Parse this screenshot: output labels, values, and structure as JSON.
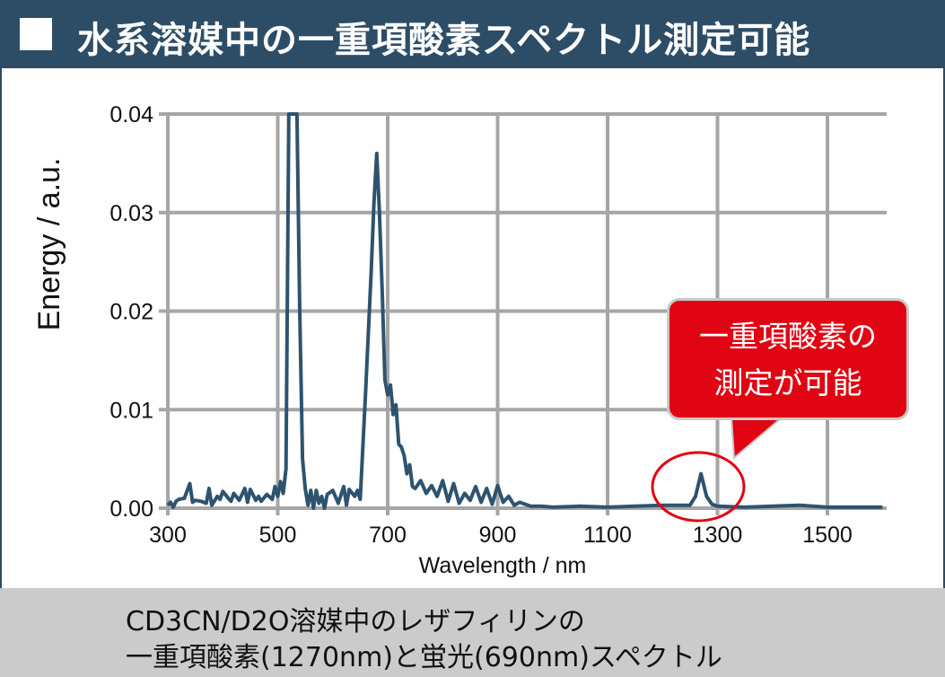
{
  "header": {
    "title": "水系溶媒中の一重項酸素スペクトル測定可能"
  },
  "callout": {
    "line1": "一重項酸素の",
    "line2": "測定が可能"
  },
  "caption": {
    "line1": "CD3CN/D2O溶媒中のレザフィリンの",
    "line2": "一重項酸素(1270nm)と蛍光(690nm)スペクトル"
  },
  "colors": {
    "header": "#2d4d66",
    "line": "#2e536e",
    "callout": "#e10514",
    "grid": "#a6a6a6",
    "caption_bg": "#cbcbcb"
  },
  "chart_data": {
    "type": "line",
    "title": "",
    "xlabel": "Wavelength / nm",
    "ylabel": "Energy / a.u.",
    "xlim": [
      300,
      1610
    ],
    "ylim": [
      0,
      0.04
    ],
    "xticks": [
      "300",
      "500",
      "700",
      "900",
      "1100",
      "1300",
      "1500"
    ],
    "yticks": [
      "0.00",
      "0.01",
      "0.02",
      "0.03",
      "0.04"
    ],
    "grid": true,
    "annotation": "circle around 1270 nm peak",
    "series": [
      {
        "name": "spectrum",
        "x": [
          300,
          305,
          310,
          315,
          320,
          330,
          340,
          345,
          350,
          360,
          370,
          375,
          380,
          390,
          395,
          400,
          410,
          415,
          420,
          430,
          440,
          445,
          450,
          460,
          465,
          470,
          480,
          490,
          495,
          500,
          505,
          510,
          515,
          520,
          525,
          530,
          535,
          540,
          545,
          550,
          555,
          560,
          565,
          570,
          575,
          580,
          585,
          590,
          600,
          610,
          620,
          625,
          630,
          640,
          645,
          650,
          660,
          670,
          675,
          680,
          685,
          690,
          695,
          700,
          705,
          710,
          715,
          720,
          725,
          730,
          735,
          740,
          745,
          750,
          760,
          770,
          780,
          790,
          800,
          810,
          820,
          830,
          840,
          850,
          860,
          870,
          880,
          890,
          900,
          910,
          920,
          930,
          940,
          960,
          980,
          1000,
          1050,
          1100,
          1150,
          1200,
          1230,
          1250,
          1260,
          1270,
          1280,
          1290,
          1300,
          1350,
          1400,
          1450,
          1500,
          1550,
          1600
        ],
        "y": [
          0.0003,
          0.0006,
          0.0001,
          0.0007,
          0.0009,
          0.001,
          0.0025,
          0.0006,
          0.0008,
          0.0007,
          0.0005,
          0.002,
          0.0003,
          0.0012,
          0.0009,
          0.0017,
          0.001,
          0.0007,
          0.0015,
          0.0008,
          0.002,
          0.0006,
          0.0019,
          0.0008,
          0.0012,
          0.0007,
          0.0014,
          0.0009,
          0.0022,
          0.0012,
          0.0027,
          0.0015,
          0.004,
          0.045,
          0.045,
          0.045,
          0.045,
          0.02,
          0.005,
          0.002,
          0.0003,
          0.0018,
          0.0,
          0.0018,
          0.0005,
          0.0012,
          0.0,
          0.0014,
          0.0018,
          0.0005,
          0.0022,
          0.0003,
          0.0019,
          0.0012,
          0.0018,
          0.0009,
          0.012,
          0.024,
          0.031,
          0.036,
          0.03,
          0.022,
          0.013,
          0.0115,
          0.0125,
          0.0095,
          0.0105,
          0.0065,
          0.0062,
          0.0053,
          0.0035,
          0.0044,
          0.0022,
          0.002,
          0.0028,
          0.0015,
          0.0023,
          0.0012,
          0.0028,
          0.0007,
          0.0025,
          0.0005,
          0.0015,
          0.0008,
          0.0022,
          0.0006,
          0.002,
          0.0004,
          0.0023,
          0.0006,
          0.0012,
          0.0003,
          0.0006,
          0.0002,
          0.0002,
          0.0001,
          0.0002,
          0.0001,
          0.0002,
          0.0003,
          0.0003,
          0.0003,
          0.0012,
          0.0035,
          0.0012,
          0.0004,
          0.0002,
          0.0001,
          0.0002,
          0.0003,
          0.0001,
          0.0001,
          0.0001
        ]
      }
    ]
  }
}
